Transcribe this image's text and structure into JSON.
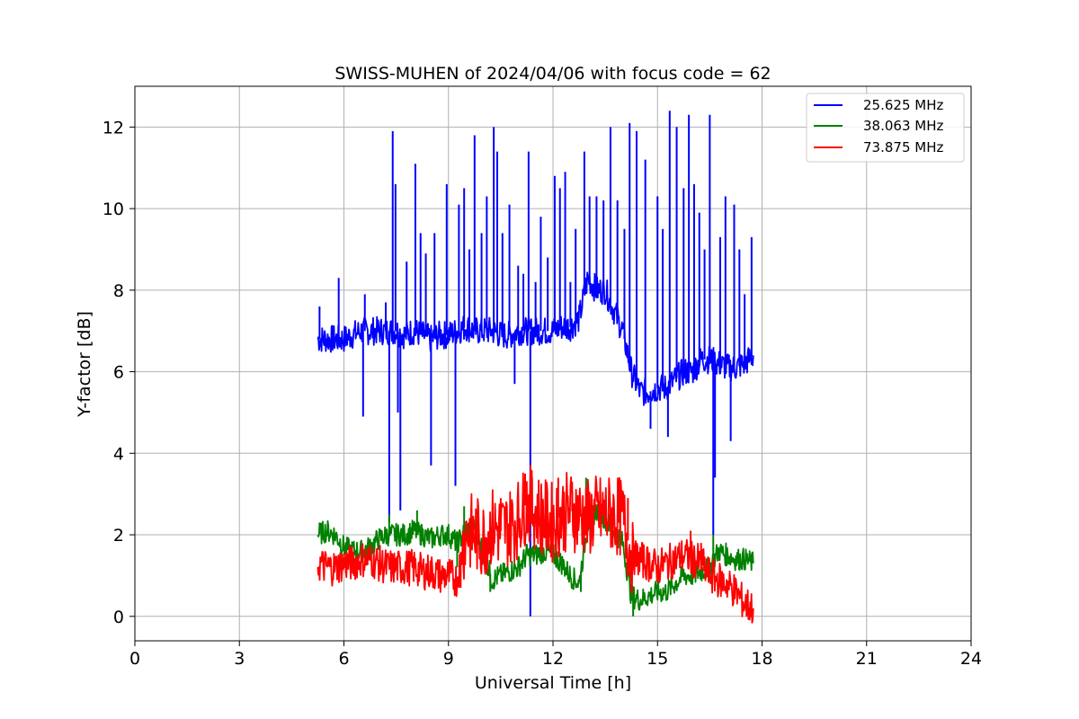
{
  "chart_data": {
    "type": "line",
    "title": "SWISS-MUHEN of 2024/04/06 with focus code = 62",
    "xlabel": "Universal Time [h]",
    "ylabel": "Y-factor [dB]",
    "xlim": [
      0,
      24
    ],
    "ylim": [
      -0.6,
      13
    ],
    "xticks": [
      0,
      3,
      6,
      9,
      12,
      15,
      18,
      21,
      24
    ],
    "yticks": [
      0,
      2,
      4,
      6,
      8,
      10,
      12
    ],
    "grid": true,
    "legend_position": "top-right",
    "series": [
      {
        "name": "25.625 MHz",
        "color": "#0000ff",
        "x": [
          5.25,
          5.5,
          5.75,
          6.0,
          6.25,
          6.5,
          6.75,
          7.0,
          7.25,
          7.5,
          7.75,
          8.0,
          8.25,
          8.5,
          8.75,
          9.0,
          9.25,
          9.5,
          9.75,
          10.0,
          10.25,
          10.5,
          10.75,
          11.0,
          11.25,
          11.5,
          11.75,
          12.0,
          12.25,
          12.5,
          12.75,
          13.0,
          13.25,
          13.5,
          13.75,
          14.0,
          14.25,
          14.5,
          14.75,
          15.0,
          15.25,
          15.5,
          15.75,
          16.0,
          16.25,
          16.5,
          16.75,
          17.0,
          17.25,
          17.5,
          17.75
        ],
        "y": [
          6.8,
          6.8,
          6.8,
          6.8,
          6.9,
          7.0,
          7.0,
          7.0,
          7.0,
          7.0,
          6.9,
          7.0,
          6.9,
          6.8,
          6.9,
          6.9,
          7.0,
          7.1,
          7.0,
          7.0,
          7.0,
          6.9,
          6.9,
          7.0,
          7.0,
          7.0,
          7.0,
          7.0,
          7.1,
          7.1,
          7.3,
          8.3,
          8.0,
          8.0,
          7.5,
          7.0,
          6.0,
          5.5,
          5.5,
          5.6,
          5.6,
          5.8,
          6.0,
          6.0,
          6.3,
          6.3,
          6.2,
          6.1,
          6.1,
          6.2,
          6.4
        ],
        "spikes": [
          {
            "x": 5.3,
            "y": 7.6
          },
          {
            "x": 5.85,
            "y": 8.3
          },
          {
            "x": 6.55,
            "y": 4.9
          },
          {
            "x": 6.6,
            "y": 7.9
          },
          {
            "x": 7.2,
            "y": 7.7
          },
          {
            "x": 7.3,
            "y": 2.3
          },
          {
            "x": 7.4,
            "y": 11.9
          },
          {
            "x": 7.48,
            "y": 10.6
          },
          {
            "x": 7.55,
            "y": 5.0
          },
          {
            "x": 7.62,
            "y": 2.6
          },
          {
            "x": 7.8,
            "y": 8.7
          },
          {
            "x": 8.05,
            "y": 11.1
          },
          {
            "x": 8.2,
            "y": 9.4
          },
          {
            "x": 8.35,
            "y": 8.9
          },
          {
            "x": 8.5,
            "y": 3.7
          },
          {
            "x": 8.6,
            "y": 9.4
          },
          {
            "x": 8.95,
            "y": 10.6
          },
          {
            "x": 9.1,
            "y": 7.0
          },
          {
            "x": 9.2,
            "y": 3.2
          },
          {
            "x": 9.3,
            "y": 10.1
          },
          {
            "x": 9.45,
            "y": 10.5
          },
          {
            "x": 9.6,
            "y": 9.0
          },
          {
            "x": 9.75,
            "y": 11.8
          },
          {
            "x": 9.95,
            "y": 9.4
          },
          {
            "x": 10.1,
            "y": 10.3
          },
          {
            "x": 10.3,
            "y": 12.0
          },
          {
            "x": 10.4,
            "y": 11.4
          },
          {
            "x": 10.55,
            "y": 9.4
          },
          {
            "x": 10.75,
            "y": 10.1
          },
          {
            "x": 10.9,
            "y": 5.7
          },
          {
            "x": 11.0,
            "y": 8.6
          },
          {
            "x": 11.15,
            "y": 8.4
          },
          {
            "x": 11.3,
            "y": 11.4
          },
          {
            "x": 11.35,
            "y": 0.0
          },
          {
            "x": 11.5,
            "y": 8.2
          },
          {
            "x": 11.65,
            "y": 9.8
          },
          {
            "x": 11.85,
            "y": 8.8
          },
          {
            "x": 12.05,
            "y": 10.8
          },
          {
            "x": 12.2,
            "y": 10.5
          },
          {
            "x": 12.35,
            "y": 10.9
          },
          {
            "x": 12.5,
            "y": 8.2
          },
          {
            "x": 12.65,
            "y": 9.5
          },
          {
            "x": 12.9,
            "y": 11.4
          },
          {
            "x": 13.05,
            "y": 10.3
          },
          {
            "x": 13.25,
            "y": 10.3
          },
          {
            "x": 13.45,
            "y": 10.2
          },
          {
            "x": 13.65,
            "y": 12.0
          },
          {
            "x": 13.85,
            "y": 10.2
          },
          {
            "x": 14.05,
            "y": 9.5
          },
          {
            "x": 14.2,
            "y": 12.1
          },
          {
            "x": 14.4,
            "y": 11.9
          },
          {
            "x": 14.65,
            "y": 11.2
          },
          {
            "x": 14.8,
            "y": 4.6
          },
          {
            "x": 15.0,
            "y": 10.3
          },
          {
            "x": 15.15,
            "y": 9.5
          },
          {
            "x": 15.3,
            "y": 4.4
          },
          {
            "x": 15.35,
            "y": 12.4
          },
          {
            "x": 15.55,
            "y": 12.0
          },
          {
            "x": 15.75,
            "y": 10.5
          },
          {
            "x": 15.9,
            "y": 12.3
          },
          {
            "x": 16.05,
            "y": 10.6
          },
          {
            "x": 16.2,
            "y": 9.9
          },
          {
            "x": 16.35,
            "y": 9.0
          },
          {
            "x": 16.5,
            "y": 12.3
          },
          {
            "x": 16.6,
            "y": 2.0
          },
          {
            "x": 16.65,
            "y": 3.4
          },
          {
            "x": 16.8,
            "y": 9.3
          },
          {
            "x": 16.95,
            "y": 10.3
          },
          {
            "x": 17.1,
            "y": 4.3
          },
          {
            "x": 17.2,
            "y": 10.1
          },
          {
            "x": 17.35,
            "y": 9.0
          },
          {
            "x": 17.5,
            "y": 7.9
          },
          {
            "x": 17.7,
            "y": 9.3
          }
        ]
      },
      {
        "name": "38.063 MHz",
        "color": "#008000",
        "x": [
          5.25,
          5.5,
          5.75,
          6.0,
          6.25,
          6.5,
          6.75,
          7.0,
          7.25,
          7.5,
          7.75,
          8.0,
          8.25,
          8.5,
          8.75,
          9.0,
          9.25,
          9.5,
          9.75,
          10.0,
          10.25,
          10.5,
          10.75,
          11.0,
          11.25,
          11.5,
          11.75,
          12.0,
          12.25,
          12.5,
          12.75,
          13.0,
          13.25,
          13.5,
          13.75,
          14.0,
          14.25,
          14.5,
          14.75,
          15.0,
          15.25,
          15.5,
          15.75,
          16.0,
          16.25,
          16.5,
          16.75,
          17.0,
          17.25,
          17.5,
          17.75
        ],
        "y": [
          2.0,
          2.1,
          2.0,
          1.7,
          1.6,
          1.6,
          1.7,
          1.9,
          2.0,
          2.0,
          2.0,
          2.1,
          2.0,
          1.9,
          2.0,
          2.0,
          1.8,
          2.1,
          2.2,
          1.6,
          0.9,
          1.0,
          1.1,
          1.2,
          1.5,
          1.5,
          1.6,
          1.5,
          1.3,
          1.0,
          0.8,
          2.3,
          2.6,
          2.4,
          2.1,
          1.8,
          0.5,
          0.4,
          0.5,
          0.6,
          0.6,
          0.8,
          1.0,
          1.0,
          1.1,
          1.2,
          1.6,
          1.5,
          1.4,
          1.4,
          1.3
        ],
        "spikes": [
          {
            "x": 5.3,
            "y": 2.3
          },
          {
            "x": 7.3,
            "y": 2.5
          },
          {
            "x": 8.1,
            "y": 2.6
          },
          {
            "x": 9.25,
            "y": 1.2
          },
          {
            "x": 9.45,
            "y": 2.7
          },
          {
            "x": 10.2,
            "y": 0.6
          },
          {
            "x": 12.8,
            "y": 0.6
          },
          {
            "x": 12.95,
            "y": 3.4
          },
          {
            "x": 14.3,
            "y": 0.0
          },
          {
            "x": 16.6,
            "y": 2.0
          }
        ]
      },
      {
        "name": "73.875 MHz",
        "color": "#ff0000",
        "x": [
          5.25,
          5.5,
          5.75,
          6.0,
          6.25,
          6.5,
          6.75,
          7.0,
          7.25,
          7.5,
          7.75,
          8.0,
          8.25,
          8.5,
          8.75,
          9.0,
          9.25,
          9.5,
          9.75,
          10.0,
          10.25,
          10.5,
          10.75,
          11.0,
          11.25,
          11.5,
          11.75,
          12.0,
          12.25,
          12.5,
          12.75,
          13.0,
          13.25,
          13.5,
          13.75,
          14.0,
          14.25,
          14.5,
          14.75,
          15.0,
          15.25,
          15.5,
          15.75,
          16.0,
          16.25,
          16.5,
          16.75,
          17.0,
          17.25,
          17.5,
          17.75
        ],
        "y": [
          1.3,
          1.2,
          1.2,
          1.3,
          1.3,
          1.4,
          1.4,
          1.3,
          1.2,
          1.2,
          1.2,
          1.2,
          1.1,
          1.1,
          1.0,
          1.0,
          0.9,
          2.1,
          2.0,
          1.9,
          2.2,
          2.1,
          2.2,
          2.4,
          2.8,
          2.6,
          2.4,
          2.3,
          2.5,
          2.6,
          2.5,
          2.4,
          2.5,
          2.5,
          2.5,
          2.4,
          1.5,
          1.4,
          1.3,
          1.2,
          1.3,
          1.4,
          1.5,
          1.4,
          1.3,
          1.0,
          0.9,
          0.8,
          0.6,
          0.3,
          0.2
        ],
        "spikes": [
          {
            "x": 9.35,
            "y": 0.7
          },
          {
            "x": 10.5,
            "y": 2.9
          },
          {
            "x": 11.2,
            "y": 3.5
          },
          {
            "x": 11.4,
            "y": 3.4
          },
          {
            "x": 12.15,
            "y": 3.4
          },
          {
            "x": 12.55,
            "y": 3.3
          },
          {
            "x": 14.15,
            "y": 2.9
          },
          {
            "x": 15.95,
            "y": 2.1
          },
          {
            "x": 16.25,
            "y": 1.8
          }
        ]
      }
    ]
  }
}
